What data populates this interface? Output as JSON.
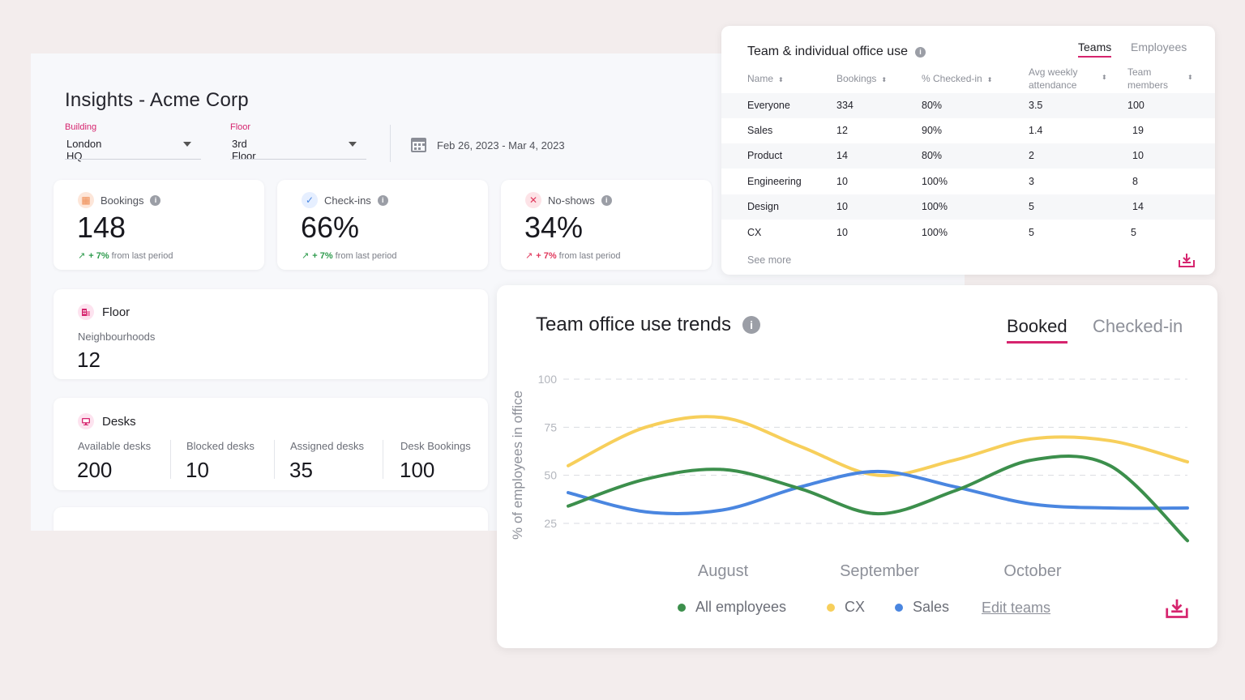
{
  "dashboard": {
    "title": "Insights - Acme Corp",
    "building": {
      "label": "Building",
      "value": "London HQ"
    },
    "floor": {
      "label": "Floor",
      "value": "3rd Floor"
    },
    "date_range": "Feb 26, 2023 - Mar 4, 2023"
  },
  "kpis": [
    {
      "label": "Bookings",
      "value": "148",
      "delta": "+ 7%",
      "delta_text": "from last period",
      "direction": "up",
      "icon": "calendar-icon"
    },
    {
      "label": "Check-ins",
      "value": "66%",
      "delta": "+ 7%",
      "delta_text": "from last period",
      "direction": "up",
      "icon": "check-icon"
    },
    {
      "label": "No-shows",
      "value": "34%",
      "delta": "+ 7%",
      "delta_text": "from last period",
      "direction": "down",
      "icon": "x-icon"
    }
  ],
  "floor_card": {
    "title": "Floor",
    "sub_label": "Neighbourhoods",
    "value": "12"
  },
  "desks_card": {
    "title": "Desks",
    "stats": [
      {
        "label": "Available desks",
        "value": "200"
      },
      {
        "label": "Blocked desks",
        "value": "10"
      },
      {
        "label": "Assigned desks",
        "value": "35"
      },
      {
        "label": "Desk Bookings",
        "value": "100"
      }
    ]
  },
  "teams_table": {
    "title": "Team & individual office use",
    "tabs": [
      "Teams",
      "Employees"
    ],
    "active_tab": "Teams",
    "columns": [
      "Name",
      "Bookings",
      "% Checked-in",
      "Avg weekly attendance",
      "Team members"
    ],
    "rows": [
      [
        "Everyone",
        "334",
        "80%",
        "3.5",
        "100"
      ],
      [
        "Sales",
        "12",
        "90%",
        "1.4",
        "19"
      ],
      [
        "Product",
        "14",
        "80%",
        "2",
        "10"
      ],
      [
        "Engineering",
        "10",
        "100%",
        "3",
        "8"
      ],
      [
        "Design",
        "10",
        "100%",
        "5",
        "14"
      ],
      [
        "CX",
        "10",
        "100%",
        "5",
        "5"
      ]
    ],
    "see_more": "See more"
  },
  "trends": {
    "title": "Team office use trends",
    "tabs": [
      "Booked",
      "Checked-in"
    ],
    "active_tab": "Booked",
    "edit_teams": "Edit teams",
    "colors": {
      "All employees": "#3c8f4c",
      "CX": "#f7cf5b",
      "Sales": "#4a86e0"
    }
  },
  "chart_data": {
    "type": "line",
    "ylabel": "% of employees in office",
    "ylim": [
      0,
      100
    ],
    "yticks": [
      25,
      50,
      75,
      100
    ],
    "x": [
      0,
      0.5,
      1,
      1.5,
      2,
      2.5,
      3,
      3.5,
      4
    ],
    "x_ticks": [
      {
        "x": 1,
        "label": "August"
      },
      {
        "x": 2,
        "label": "September"
      },
      {
        "x": 3,
        "label": "October"
      }
    ],
    "grid": true,
    "legend_position": "bottom",
    "series": [
      {
        "name": "All employees",
        "values": [
          34,
          48,
          53,
          43,
          30,
          42,
          58,
          55,
          16
        ]
      },
      {
        "name": "CX",
        "values": [
          55,
          75,
          80,
          65,
          50,
          58,
          69,
          68,
          57
        ]
      },
      {
        "name": "Sales",
        "values": [
          41,
          31,
          32,
          44,
          52,
          44,
          35,
          33,
          33
        ]
      }
    ]
  }
}
